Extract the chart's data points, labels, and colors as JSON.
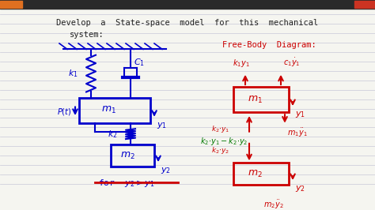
{
  "bg_color": "#f5f5f0",
  "line_color": "#c8c8d8",
  "title_line1": "Develop  a  State-space  model  for  this  mechanical",
  "title_line2": "system:",
  "free_body_title": "Free-Body  Diagram:",
  "title_color": "#222222",
  "red_color": "#cc0000",
  "blue_color": "#0000cc",
  "green_color": "#007700",
  "top_bar_color": "#333333",
  "orange_rect_color": "#e07020"
}
